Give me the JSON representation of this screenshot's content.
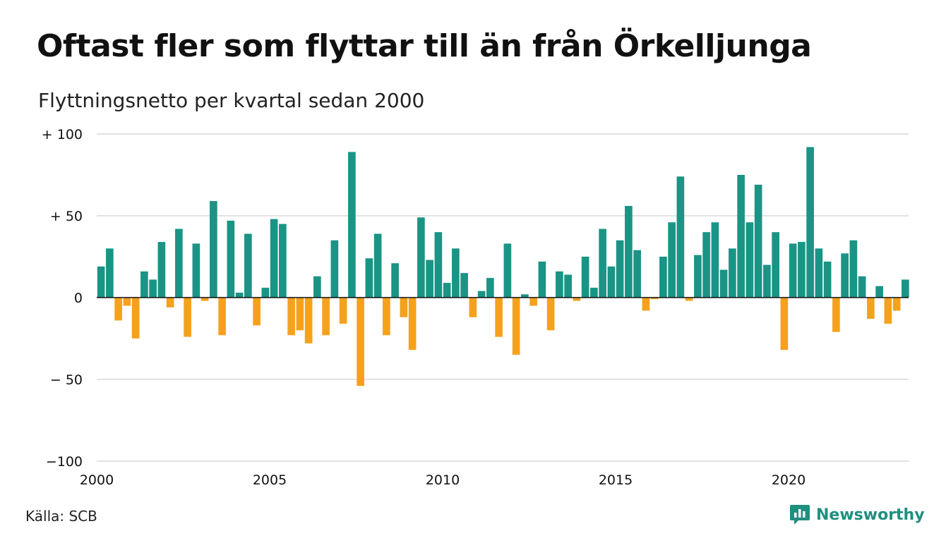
{
  "header": {
    "title": "Oftast fler som flyttar till än från Örkelljunga",
    "subtitle": "Flyttningsnetto per kvartal sedan 2000"
  },
  "footer": {
    "source": "Källa: SCB",
    "brand": "Newsworthy"
  },
  "colors": {
    "positive": "#1a9485",
    "negative": "#f5a11c",
    "grid": "#d9d9d9",
    "brand": "#1f8f7f"
  },
  "icons": {
    "brand_logo": "newsworthy-chat-chart-icon"
  },
  "chart_data": {
    "type": "bar",
    "title": "Oftast fler som flyttar till än från Örkelljunga",
    "subtitle": "Flyttningsnetto per kvartal sedan 2000",
    "xlabel": "",
    "ylabel": "",
    "ylim": [
      -100,
      100
    ],
    "grid": true,
    "y_ticks": [
      {
        "value": 100,
        "label": "+ 100"
      },
      {
        "value": 50,
        "label": "+  50"
      },
      {
        "value": 0,
        "label": "0"
      },
      {
        "value": -50,
        "label": "− 50"
      },
      {
        "value": -100,
        "label": "−100"
      }
    ],
    "x_ticks": [
      {
        "year": 2000,
        "label": "2000"
      },
      {
        "year": 2005,
        "label": "2005"
      },
      {
        "year": 2010,
        "label": "2010"
      },
      {
        "year": 2015,
        "label": "2015"
      },
      {
        "year": 2020,
        "label": "2020"
      }
    ],
    "start_year": 2000,
    "periods_per_year": 4,
    "values": [
      19,
      30,
      -14,
      -5,
      -25,
      16,
      11,
      34,
      -6,
      42,
      -24,
      33,
      -2,
      59,
      -23,
      47,
      3,
      39,
      -17,
      6,
      48,
      45,
      -23,
      -20,
      -28,
      13,
      -23,
      35,
      -16,
      89,
      -54,
      24,
      39,
      -23,
      21,
      -12,
      -32,
      49,
      23,
      40,
      9,
      30,
      15,
      -12,
      4,
      12,
      -24,
      33,
      -35,
      2,
      -5,
      22,
      -20,
      16,
      14,
      -2,
      25,
      6,
      42,
      19,
      35,
      56,
      29,
      -8,
      -1,
      25,
      46,
      74,
      -2,
      26,
      40,
      46,
      17,
      30,
      75,
      46,
      69,
      20,
      40,
      -32,
      33,
      34,
      92,
      30,
      22,
      -21,
      27,
      35,
      13,
      -13,
      7,
      -16,
      -8,
      11
    ]
  }
}
